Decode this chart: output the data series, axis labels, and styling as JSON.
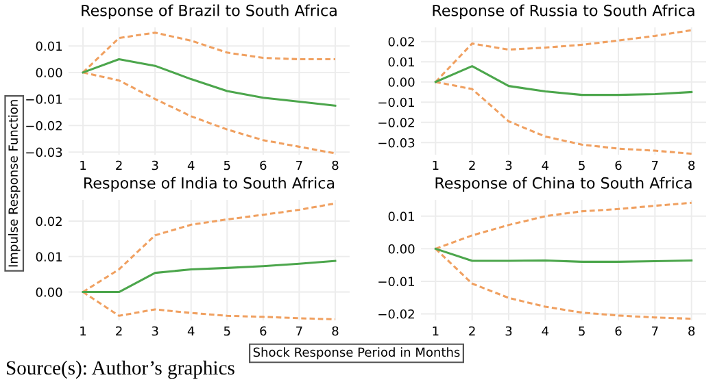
{
  "chart_data": [
    {
      "type": "line",
      "title": "Response of Brazil to South Africa",
      "ylabel": "Impulse Response Function",
      "x": [
        1,
        2,
        3,
        4,
        5,
        6,
        7,
        8
      ],
      "xlim": [
        0.6,
        8.4
      ],
      "xticks": [
        1,
        2,
        3,
        4,
        5,
        6,
        7,
        8
      ],
      "ylim": [
        -0.031,
        0.017
      ],
      "yticks": [
        {
          "value": 0.01,
          "label": "0.01"
        },
        {
          "value": 0,
          "label": "0.00"
        },
        {
          "value": -0.01,
          "label": "−0.01"
        },
        {
          "value": -0.02,
          "label": "−0.02"
        },
        {
          "value": -0.03,
          "label": "−0.03"
        }
      ],
      "grid": true,
      "legend": false,
      "marker": "none",
      "series": [
        {
          "color": "#f0a060",
          "line_style": "dashed",
          "values": [
            0,
            0.013,
            0.015,
            0.012,
            0.0075,
            0.0055,
            0.005,
            0.005
          ]
        },
        {
          "color": "#f0a060",
          "line_style": "dashed",
          "values": [
            0,
            -0.003,
            -0.01,
            -0.0165,
            -0.0215,
            -0.0255,
            -0.028,
            -0.0305
          ]
        },
        {
          "color": "#4ca64c",
          "line_style": "solid",
          "values": [
            0,
            0.005,
            0.0025,
            -0.0025,
            -0.007,
            -0.0095,
            -0.011,
            -0.0125
          ]
        }
      ]
    },
    {
      "type": "line",
      "title": "Response of Russia to South Africa",
      "x": [
        1,
        2,
        3,
        4,
        5,
        6,
        7,
        8
      ],
      "xlim": [
        0.6,
        8.4
      ],
      "xticks": [
        1,
        2,
        3,
        4,
        5,
        6,
        7,
        8
      ],
      "ylim": [
        -0.036,
        0.027
      ],
      "yticks": [
        {
          "value": 0.02,
          "label": "0.02"
        },
        {
          "value": 0.01,
          "label": "0.01"
        },
        {
          "value": 0,
          "label": "0.00"
        },
        {
          "value": -0.01,
          "label": "−0.01"
        },
        {
          "value": -0.02,
          "label": "−0.02"
        },
        {
          "value": -0.03,
          "label": "−0.03"
        }
      ],
      "grid": true,
      "legend": false,
      "marker": "none",
      "series": [
        {
          "color": "#f0a060",
          "line_style": "dashed",
          "values": [
            0,
            0.019,
            0.016,
            0.017,
            0.0184,
            0.0205,
            0.0228,
            0.0256
          ]
        },
        {
          "color": "#f0a060",
          "line_style": "dashed",
          "values": [
            0,
            -0.0035,
            -0.0195,
            -0.027,
            -0.031,
            -0.033,
            -0.034,
            -0.0355
          ]
        },
        {
          "color": "#4ca64c",
          "line_style": "solid",
          "values": [
            0,
            0.0078,
            -0.002,
            -0.0047,
            -0.0064,
            -0.0064,
            -0.006,
            -0.005
          ]
        }
      ]
    },
    {
      "type": "line",
      "title": "Response of India to South Africa",
      "xlabel": "Shock Response Period in Months",
      "annotations": [
        "Source(s): Author’s graphics"
      ],
      "x": [
        1,
        2,
        3,
        4,
        5,
        6,
        7,
        8
      ],
      "xlim": [
        0.6,
        8.4
      ],
      "xticks": [
        1,
        2,
        3,
        4,
        5,
        6,
        7,
        8
      ],
      "ylim": [
        -0.008,
        0.026
      ],
      "yticks": [
        {
          "value": 0.02,
          "label": "0.02"
        },
        {
          "value": 0.01,
          "label": "0.01"
        },
        {
          "value": 0,
          "label": "0.00"
        }
      ],
      "grid": true,
      "legend": false,
      "marker": "none",
      "series": [
        {
          "color": "#f0a060",
          "line_style": "dashed",
          "values": [
            0,
            0.0064,
            0.016,
            0.019,
            0.0205,
            0.0218,
            0.0232,
            0.025
          ]
        },
        {
          "color": "#f0a060",
          "line_style": "dashed",
          "values": [
            0,
            -0.0067,
            -0.0049,
            -0.0059,
            -0.0067,
            -0.007,
            -0.0074,
            -0.0077
          ]
        },
        {
          "color": "#4ca64c",
          "line_style": "solid",
          "values": [
            0,
            0,
            0.0054,
            0.0064,
            0.0068,
            0.0073,
            0.008,
            0.0088
          ]
        }
      ]
    },
    {
      "type": "line",
      "title": "Response of China to South Africa",
      "x": [
        1,
        2,
        3,
        4,
        5,
        6,
        7,
        8
      ],
      "xlim": [
        0.6,
        8.4
      ],
      "xticks": [
        1,
        2,
        3,
        4,
        5,
        6,
        7,
        8
      ],
      "ylim": [
        -0.022,
        0.015
      ],
      "yticks": [
        {
          "value": 0.01,
          "label": "0.01"
        },
        {
          "value": 0,
          "label": "0.00"
        },
        {
          "value": -0.01,
          "label": "−0.01"
        },
        {
          "value": -0.02,
          "label": "−0.02"
        }
      ],
      "grid": true,
      "legend": false,
      "marker": "none",
      "series": [
        {
          "color": "#f0a060",
          "line_style": "dashed",
          "values": [
            0,
            0.0041,
            0.0073,
            0.01,
            0.0115,
            0.0122,
            0.0132,
            0.0141
          ]
        },
        {
          "color": "#f0a060",
          "line_style": "dashed",
          "values": [
            0,
            -0.0107,
            -0.0151,
            -0.0178,
            -0.0196,
            -0.0205,
            -0.0211,
            -0.0215
          ]
        },
        {
          "color": "#4ca64c",
          "line_style": "solid",
          "values": [
            0,
            -0.0037,
            -0.0037,
            -0.0036,
            -0.004,
            -0.004,
            -0.0038,
            -0.0036
          ]
        }
      ]
    }
  ]
}
